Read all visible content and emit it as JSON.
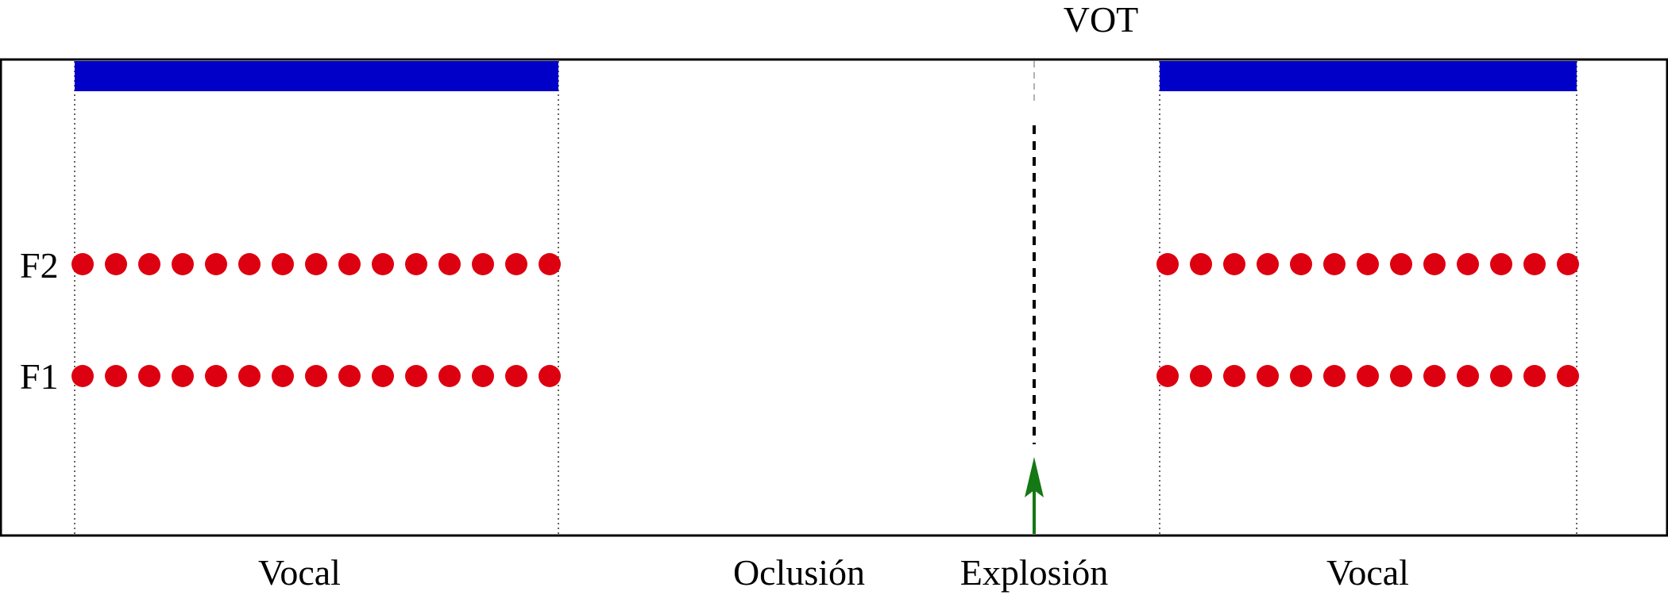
{
  "labels": {
    "vot": "VOT",
    "f2": "F2",
    "f1": "F1",
    "vocal_left": "Vocal",
    "oclusion": "Oclusión",
    "explosion": "Explosión",
    "vocal_right": "Vocal"
  },
  "colors": {
    "voicing_bar": "#0000c8",
    "formant_dot": "#dd0010",
    "release_arrow": "#147814",
    "frame": "#000000",
    "guide_line": "#000000",
    "vot_line": "#000000"
  },
  "segments": [
    {
      "id": "vocal-left",
      "label_key": "vocal_left",
      "voiced": true,
      "formant_dots": 15
    },
    {
      "id": "oclusion",
      "label_key": "oclusion",
      "voiced": false,
      "formant_dots": 0
    },
    {
      "id": "explosion",
      "label_key": "explosion",
      "voiced": false,
      "formant_dots": 0
    },
    {
      "id": "vocal-right",
      "label_key": "vocal_right",
      "voiced": true,
      "formant_dots": 13
    }
  ],
  "formants": [
    "F2",
    "F1"
  ]
}
